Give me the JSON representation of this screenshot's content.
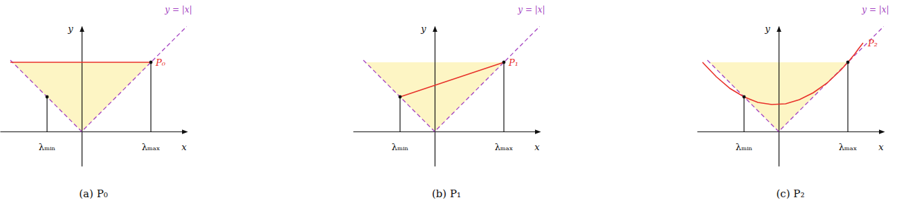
{
  "chart_data": [
    {
      "type": "line",
      "title": "(a) P₀",
      "x_label": "x",
      "y_label": "y",
      "xlim": [
        -1.18,
        1.52
      ],
      "ylim": [
        -0.5,
        1.52
      ],
      "tick_labels": false,
      "shaded": {
        "color": "#fdf5c4",
        "x": [
          -1,
          0,
          1
        ],
        "lower": [
          1,
          0,
          1
        ],
        "upper": [
          1,
          1,
          1
        ]
      },
      "series": [
        {
          "name": "y = |x|",
          "color": "#a23fc0",
          "line_style": "dashed",
          "x": [
            -1.03,
            0,
            1.52
          ],
          "values": [
            1.03,
            0,
            1.52
          ]
        },
        {
          "name": "P₀",
          "color": "#e8302a",
          "line_style": "solid",
          "x": [
            -1.03,
            1.0
          ],
          "values": [
            1.0,
            1.0
          ]
        }
      ],
      "points": {
        "x": [
          -0.5,
          1.0
        ],
        "values": [
          0.5,
          1.0
        ],
        "labels": [
          "λₘᵢₙ",
          "λₘₐₓ"
        ]
      }
    },
    {
      "type": "line",
      "title": "(b) P₁",
      "x_label": "x",
      "y_label": "y",
      "xlim": [
        -1.18,
        1.52
      ],
      "ylim": [
        -0.5,
        1.52
      ],
      "tick_labels": false,
      "shaded": {
        "color": "#fdf5c4",
        "x": [
          -1,
          0,
          1
        ],
        "lower": [
          1,
          0,
          1
        ],
        "upper": [
          1,
          1,
          1
        ]
      },
      "series": [
        {
          "name": "y = |x|",
          "color": "#a23fc0",
          "line_style": "dashed",
          "x": [
            -1.03,
            0,
            1.52
          ],
          "values": [
            1.03,
            0,
            1.52
          ]
        },
        {
          "name": "P₁",
          "color": "#e8302a",
          "line_style": "solid",
          "x": [
            -0.5,
            1.0
          ],
          "values": [
            0.5,
            1.0
          ]
        }
      ],
      "points": {
        "x": [
          -0.5,
          1.0
        ],
        "values": [
          0.5,
          1.0
        ],
        "labels": [
          "λₘᵢₙ",
          "λₘₐₓ"
        ]
      }
    },
    {
      "type": "line",
      "title": "(c) P₂",
      "x_label": "x",
      "y_label": "y",
      "xlim": [
        -1.18,
        1.52
      ],
      "ylim": [
        -0.5,
        1.52
      ],
      "tick_labels": false,
      "shaded": {
        "color": "#fdf5c4",
        "x": [
          -1,
          0,
          1
        ],
        "lower": [
          1,
          0,
          1
        ],
        "upper": [
          1,
          1,
          1
        ]
      },
      "series": [
        {
          "name": "y = |x|",
          "color": "#a23fc0",
          "line_style": "dashed",
          "x": [
            -1.03,
            0,
            1.52
          ],
          "values": [
            1.03,
            0,
            1.52
          ]
        },
        {
          "name": "P₂",
          "color": "#e8302a",
          "line_style": "solid",
          "x": [
            -1.1,
            -0.9,
            -0.7,
            -0.5,
            -0.3,
            -0.1,
            0.1,
            0.3,
            0.5,
            0.7,
            0.9,
            1.0,
            1.1,
            1.15,
            1.22
          ],
          "values": [
            1.0,
            0.79,
            0.62,
            0.5,
            0.42,
            0.39,
            0.4,
            0.46,
            0.56,
            0.7,
            0.89,
            1.0,
            1.12,
            1.19,
            1.28
          ]
        }
      ],
      "points": {
        "x": [
          -0.5,
          1.0
        ],
        "values": [
          0.5,
          1.0
        ],
        "labels": [
          "λₘᵢₙ",
          "λₘₐₓ"
        ]
      }
    }
  ]
}
